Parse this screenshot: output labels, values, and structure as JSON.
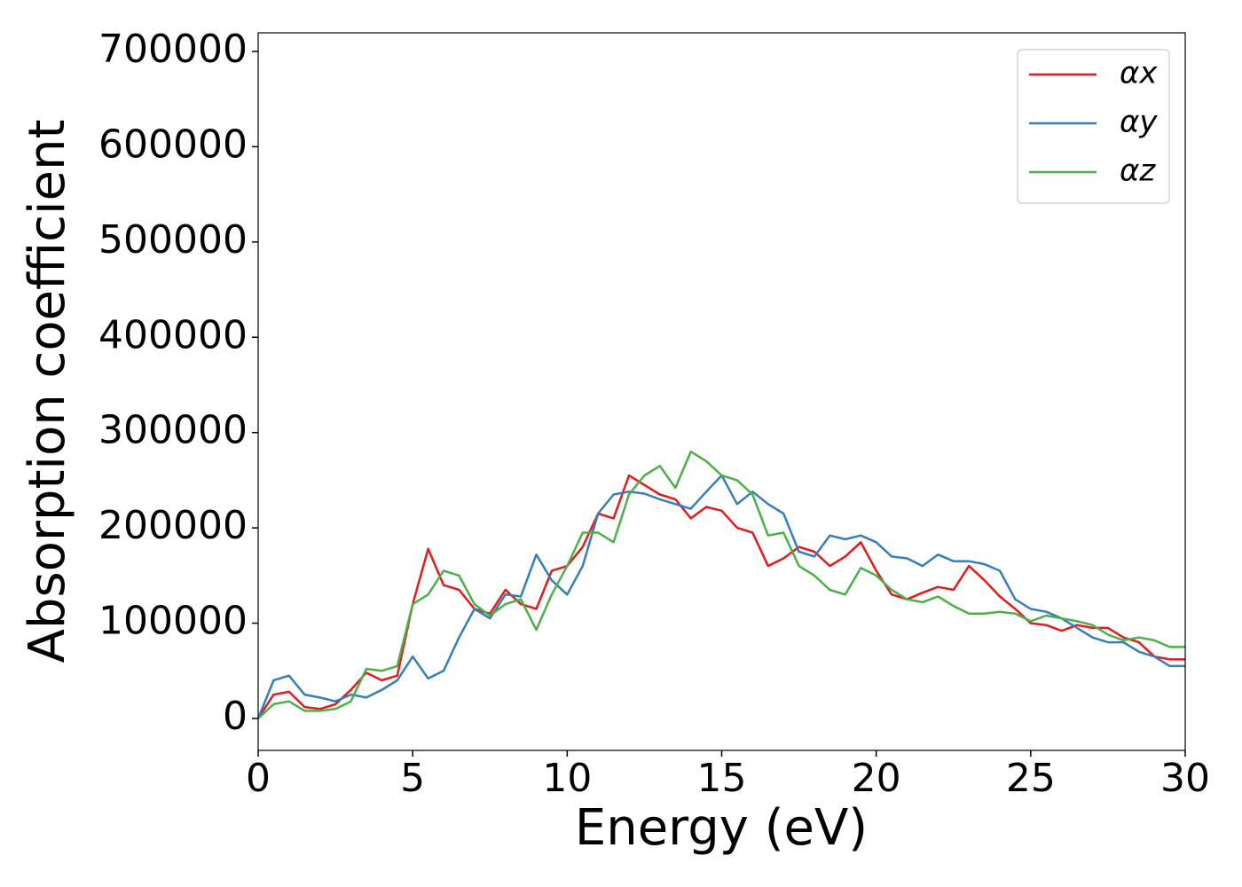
{
  "chart_data": {
    "type": "line",
    "xlabel": "Energy (eV)",
    "ylabel": "Absorption coefficient",
    "x": [
      0,
      0.5,
      1,
      1.5,
      2,
      2.5,
      3,
      3.5,
      4,
      4.5,
      5,
      5.5,
      6,
      6.5,
      7,
      7.5,
      8,
      8.5,
      9,
      9.5,
      10,
      10.5,
      11,
      11.5,
      12,
      12.5,
      13,
      13.5,
      14,
      14.5,
      15,
      15.5,
      16,
      16.5,
      17,
      17.5,
      18,
      18.5,
      19,
      19.5,
      20,
      20.5,
      21,
      21.5,
      22,
      22.5,
      23,
      23.5,
      24,
      24.5,
      25,
      25.5,
      26,
      26.5,
      27,
      27.5,
      28,
      28.5,
      29,
      29.5,
      30
    ],
    "series": [
      {
        "name": "αx",
        "color": "#e41a1c",
        "values": [
          0,
          25000,
          28000,
          12000,
          10000,
          15000,
          30000,
          48000,
          40000,
          45000,
          120000,
          178000,
          140000,
          135000,
          115000,
          110000,
          135000,
          120000,
          115000,
          155000,
          160000,
          180000,
          215000,
          210000,
          255000,
          245000,
          235000,
          230000,
          210000,
          222000,
          218000,
          200000,
          195000,
          160000,
          168000,
          180000,
          175000,
          160000,
          170000,
          185000,
          155000,
          130000,
          125000,
          132000,
          138000,
          135000,
          160000,
          145000,
          128000,
          115000,
          100000,
          98000,
          92000,
          98000,
          95000,
          95000,
          85000,
          80000,
          65000,
          62000,
          62000
        ]
      },
      {
        "name": "αy",
        "color": "#377eb8",
        "values": [
          0,
          40000,
          45000,
          25000,
          22000,
          18000,
          25000,
          22000,
          30000,
          40000,
          65000,
          42000,
          50000,
          85000,
          115000,
          105000,
          130000,
          128000,
          172000,
          145000,
          130000,
          160000,
          215000,
          235000,
          238000,
          236000,
          230000,
          225000,
          220000,
          238000,
          255000,
          225000,
          238000,
          225000,
          215000,
          175000,
          170000,
          192000,
          188000,
          192000,
          185000,
          170000,
          168000,
          160000,
          172000,
          165000,
          165000,
          162000,
          155000,
          125000,
          115000,
          112000,
          105000,
          95000,
          85000,
          80000,
          80000,
          70000,
          65000,
          55000,
          55000
        ]
      },
      {
        "name": "αz",
        "color": "#4daf4a",
        "values": [
          0,
          15000,
          18000,
          8000,
          8000,
          10000,
          18000,
          52000,
          50000,
          55000,
          120000,
          130000,
          155000,
          150000,
          120000,
          108000,
          120000,
          125000,
          93000,
          130000,
          160000,
          195000,
          195000,
          185000,
          235000,
          255000,
          265000,
          242000,
          280000,
          270000,
          255000,
          250000,
          235000,
          192000,
          195000,
          160000,
          150000,
          135000,
          130000,
          158000,
          150000,
          135000,
          125000,
          122000,
          128000,
          118000,
          110000,
          110000,
          112000,
          110000,
          102000,
          108000,
          105000,
          102000,
          98000,
          88000,
          82000,
          85000,
          82000,
          75000,
          75000
        ]
      }
    ],
    "xlim": [
      0,
      30
    ],
    "xticks": [
      0,
      5,
      10,
      15,
      20,
      25,
      30
    ],
    "ylim": [
      -33500,
      719500
    ],
    "yticks": [
      0,
      100000,
      200000,
      300000,
      400000,
      500000,
      600000,
      700000
    ],
    "grid": false,
    "legend": "upper right"
  }
}
